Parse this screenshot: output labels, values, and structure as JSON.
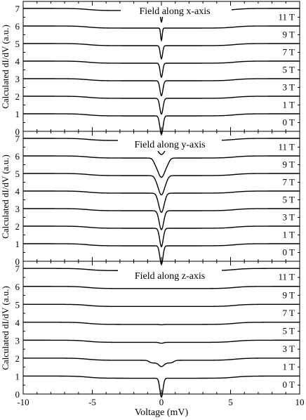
{
  "chart_data": [
    {
      "type": "line",
      "title": "Field along x-axis",
      "xlabel": "",
      "ylabel": "Calculated dI/dV (a.u.)",
      "xlim": [
        -10,
        10
      ],
      "ylim": [
        0,
        7.4
      ],
      "yticks": [
        0,
        1,
        2,
        3,
        4,
        5,
        6,
        7
      ],
      "series": [
        {
          "name": "0 T",
          "offset": 0,
          "base": 1.0,
          "dip_width": 0.16,
          "dip_depth": 1.05,
          "flat_dip_width": 0,
          "flat_dip_depth": 0
        },
        {
          "name": "1 T",
          "offset": 1,
          "base": 1.0,
          "dip_width": 0.16,
          "dip_depth": 0.9,
          "flat_dip_width": 0,
          "flat_dip_depth": 0
        },
        {
          "name": "3 T",
          "offset": 2,
          "base": 1.0,
          "dip_width": 0.15,
          "dip_depth": 0.85,
          "flat_dip_width": 0,
          "flat_dip_depth": 0
        },
        {
          "name": "5 T",
          "offset": 3,
          "base": 1.0,
          "dip_width": 0.13,
          "dip_depth": 0.8,
          "flat_dip_width": 0,
          "flat_dip_depth": 0
        },
        {
          "name": "7 T",
          "offset": 4,
          "base": 1.0,
          "dip_width": 0.12,
          "dip_depth": 0.75,
          "flat_dip_width": 0,
          "flat_dip_depth": 0
        },
        {
          "name": "9 T",
          "offset": 5,
          "base": 1.0,
          "dip_width": 0.08,
          "dip_depth": 0.7,
          "flat_dip_width": 0,
          "flat_dip_depth": 0
        },
        {
          "name": "11 T",
          "offset": 6,
          "base": 1.0,
          "dip_width": 0.1,
          "dip_depth": 0.65,
          "flat_dip_width": 0,
          "flat_dip_depth": 0
        }
      ]
    },
    {
      "type": "line",
      "title": "Field along y-axis",
      "xlabel": "",
      "ylabel": "Calculated dI/dV (a.u.)",
      "xlim": [
        -10,
        10
      ],
      "ylim": [
        0,
        7.4
      ],
      "yticks": [
        0,
        1,
        2,
        3,
        4,
        5,
        6,
        7
      ],
      "series": [
        {
          "name": "0 T",
          "offset": 0,
          "base": 1.0,
          "dip_width": 0.16,
          "dip_depth": 1.05,
          "flat_dip_width": 0,
          "flat_dip_depth": 0
        },
        {
          "name": "1 T",
          "offset": 1,
          "base": 1.0,
          "dip_width": 0.18,
          "dip_depth": 0.9,
          "flat_dip_width": 0.1,
          "flat_dip_depth": 0.2
        },
        {
          "name": "3 T",
          "offset": 2,
          "base": 1.0,
          "dip_width": 0.22,
          "dip_depth": 0.85,
          "flat_dip_width": 0.2,
          "flat_dip_depth": 0.25
        },
        {
          "name": "5 T",
          "offset": 3,
          "base": 1.0,
          "dip_width": 0.25,
          "dip_depth": 0.8,
          "flat_dip_width": 0.3,
          "flat_dip_depth": 0.3
        },
        {
          "name": "7 T",
          "offset": 4,
          "base": 1.0,
          "dip_width": 0.28,
          "dip_depth": 0.75,
          "flat_dip_width": 0.45,
          "flat_dip_depth": 0.35
        },
        {
          "name": "9 T",
          "offset": 5,
          "base": 1.0,
          "dip_width": 0.32,
          "dip_depth": 0.7,
          "flat_dip_width": 0.55,
          "flat_dip_depth": 0.4
        },
        {
          "name": "11 T",
          "offset": 6,
          "base": 1.0,
          "dip_width": 0.35,
          "dip_depth": 0.5,
          "flat_dip_width": 0.8,
          "flat_dip_depth": 0.3
        }
      ]
    },
    {
      "type": "line",
      "title": "Field along z-axis",
      "xlabel": "Voltage (mV)",
      "ylabel": "Calculated dI/dV (a.u.)",
      "xlim": [
        -10,
        10
      ],
      "ylim": [
        0,
        7.4
      ],
      "yticks": [
        0,
        1,
        2,
        3,
        4,
        5,
        6,
        7
      ],
      "xticks": [
        -10,
        -5,
        0,
        5,
        10
      ],
      "series": [
        {
          "name": "0 T",
          "offset": 0,
          "base": 1.0,
          "dip_width": 0.16,
          "dip_depth": 1.05,
          "flat_dip_width": 0,
          "flat_dip_depth": 0
        },
        {
          "name": "1 T",
          "offset": 1,
          "base": 1.0,
          "dip_width": 0.25,
          "dip_depth": 0.2,
          "flat_dip_width": 0.9,
          "flat_dip_depth": 0.15
        },
        {
          "name": "3 T",
          "offset": 2,
          "base": 1.0,
          "dip_width": 0.2,
          "dip_depth": 0.05,
          "flat_dip_width": 0,
          "flat_dip_depth": 0
        },
        {
          "name": "5 T",
          "offset": 3,
          "base": 1.0,
          "dip_width": 0.2,
          "dip_depth": 0.02,
          "flat_dip_width": 0,
          "flat_dip_depth": 0
        },
        {
          "name": "7 T",
          "offset": 4,
          "base": 1.0,
          "dip_width": 0.2,
          "dip_depth": 0.0,
          "flat_dip_width": 0,
          "flat_dip_depth": 0
        },
        {
          "name": "9 T",
          "offset": 5,
          "base": 1.0,
          "dip_width": 0.2,
          "dip_depth": 0.0,
          "flat_dip_width": 0,
          "flat_dip_depth": 0
        },
        {
          "name": "11 T",
          "offset": 6,
          "base": 1.0,
          "dip_width": 0.2,
          "dip_depth": 0.0,
          "flat_dip_width": 0,
          "flat_dip_depth": 0
        }
      ]
    }
  ],
  "colors": {
    "line": "#000000",
    "background": "#ffffff"
  }
}
